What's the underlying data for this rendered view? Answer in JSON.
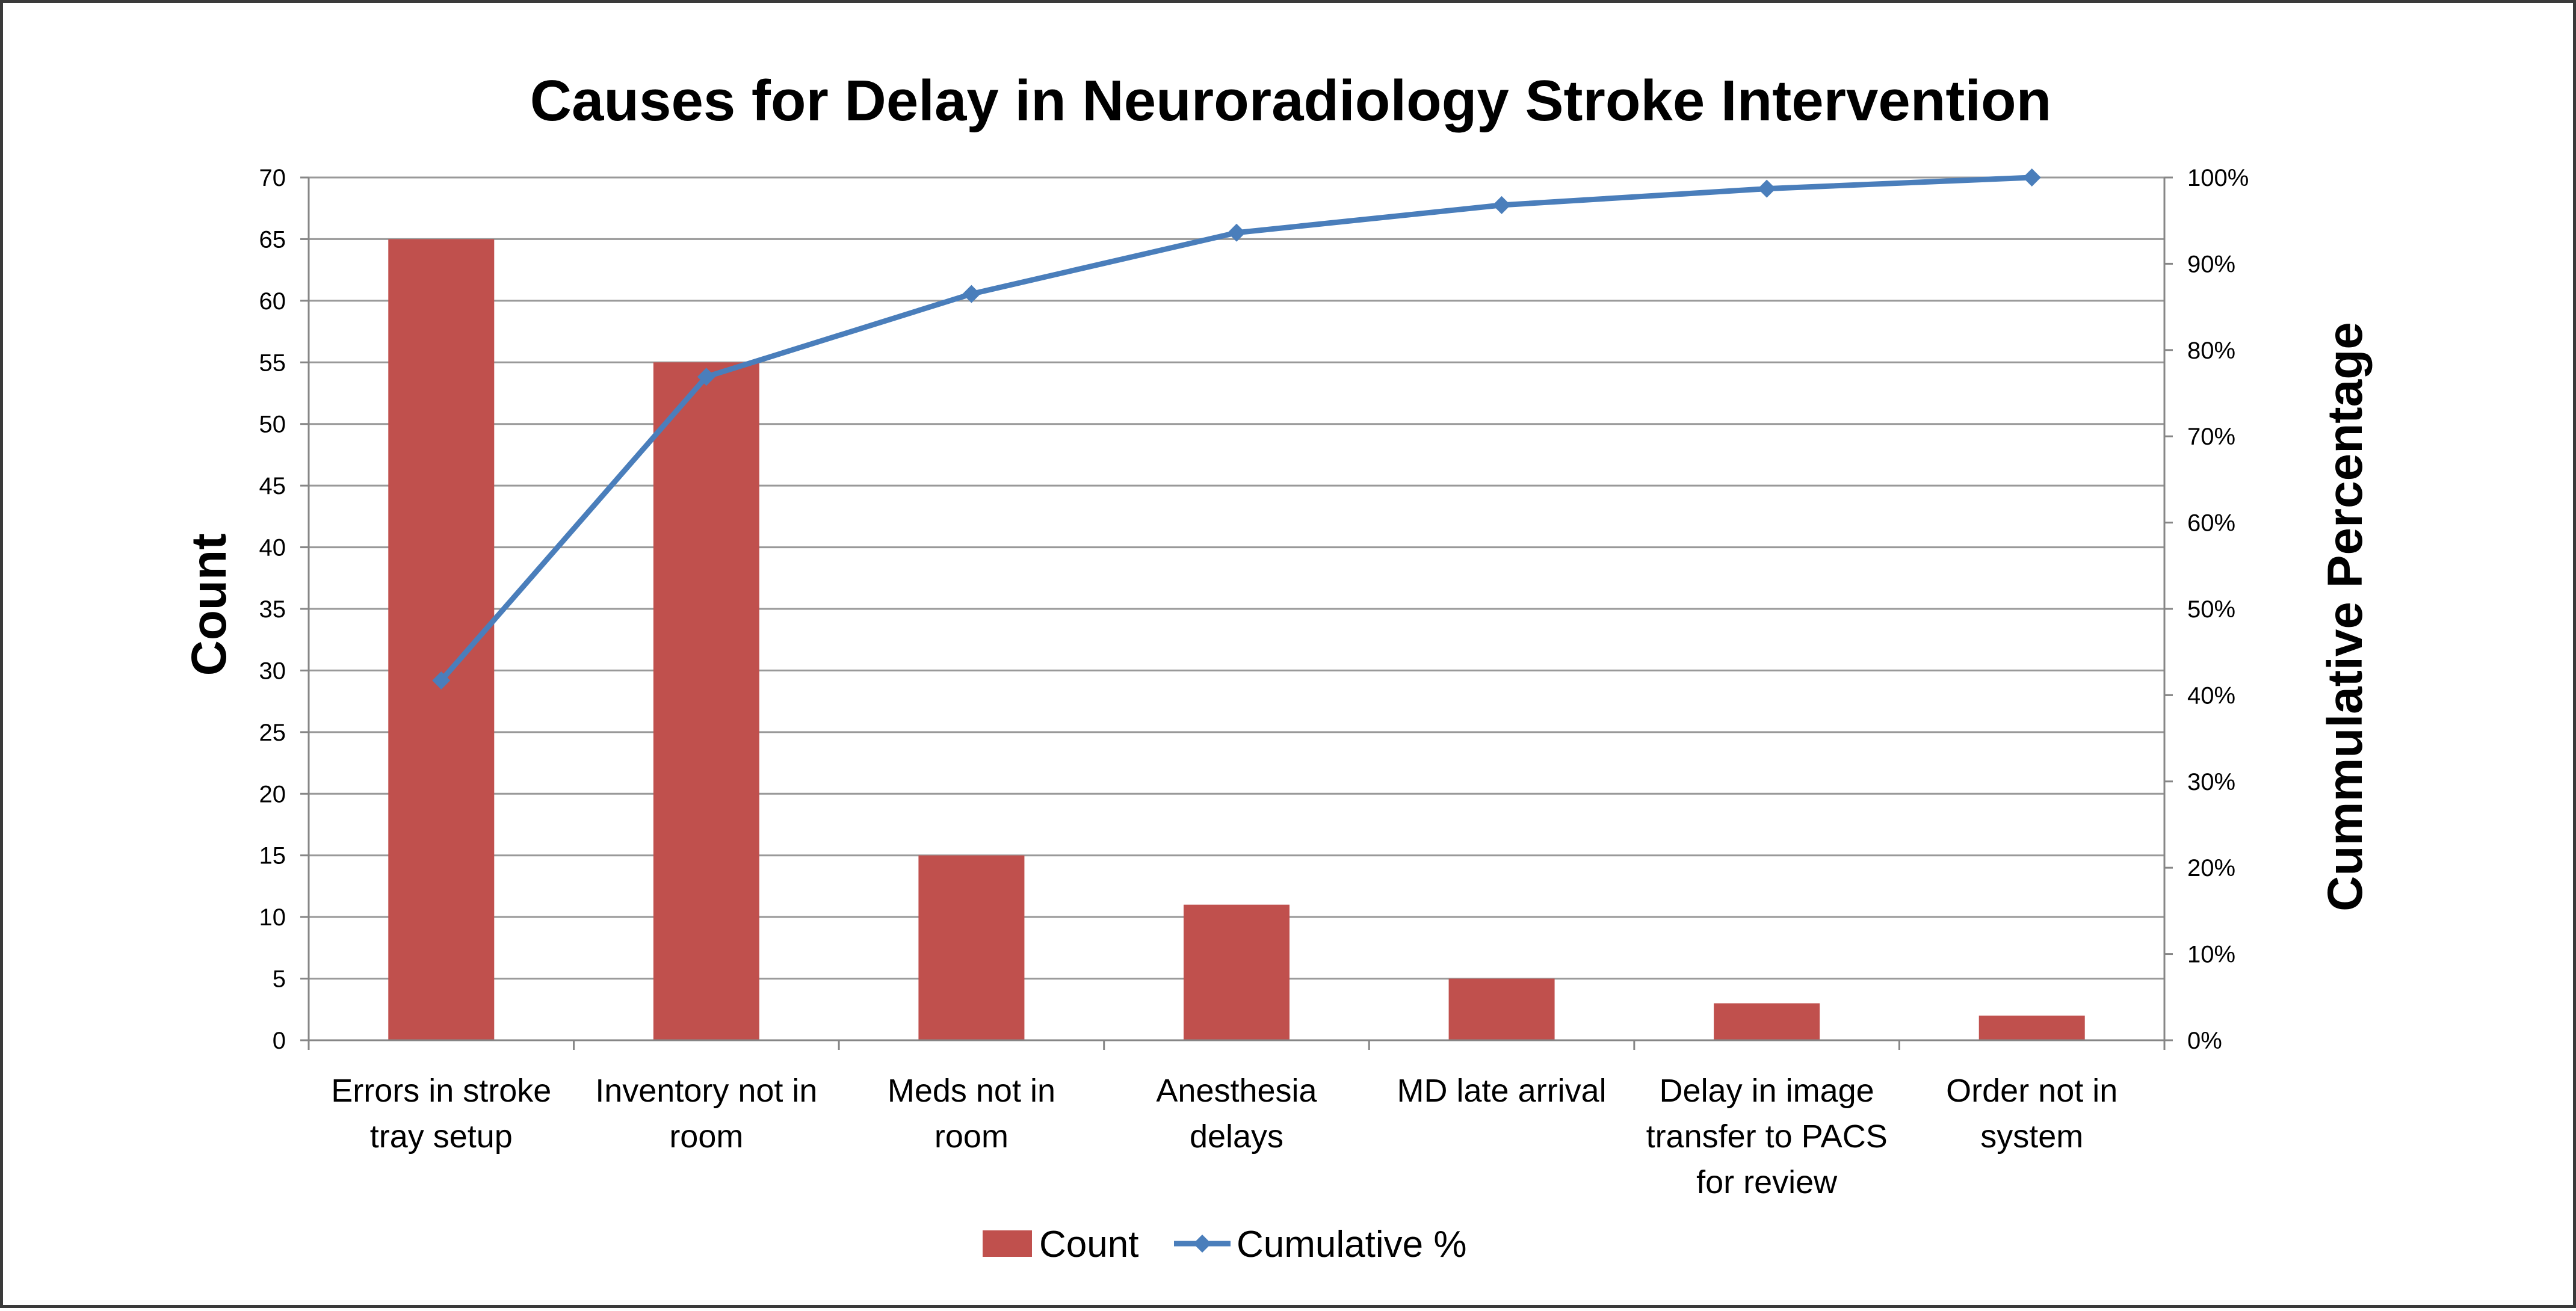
{
  "chart_data": {
    "type": "bar",
    "title": "Causes for Delay in Neuroradiology Stroke Intervention",
    "ylabel": "Count",
    "y2label": "Cummulative Percentage",
    "categories": [
      [
        "Errors in stroke",
        "tray setup"
      ],
      [
        "Inventory not in",
        "room"
      ],
      [
        "Meds not in",
        "room"
      ],
      [
        "Anesthesia",
        "delays"
      ],
      [
        "MD late arrival"
      ],
      [
        "Delay in image",
        "transfer to PACS",
        "for review"
      ],
      [
        "Order not in",
        "system"
      ]
    ],
    "series": [
      {
        "name": "Count",
        "type": "bar",
        "axis": "left",
        "color": "#c0504d",
        "values": [
          65,
          55,
          15,
          11,
          5,
          3,
          2
        ]
      },
      {
        "name": "Cumulative %",
        "type": "line",
        "axis": "right",
        "color": "#4a7ebb",
        "values": [
          41.7,
          76.9,
          86.5,
          93.6,
          96.8,
          98.7,
          100
        ]
      }
    ],
    "ylim": [
      0,
      70
    ],
    "yticks": [
      "0",
      "5",
      "10",
      "15",
      "20",
      "25",
      "30",
      "35",
      "40",
      "45",
      "50",
      "55",
      "60",
      "65",
      "70"
    ],
    "y2lim": [
      0,
      100
    ],
    "y2ticks": [
      "0%",
      "10%",
      "20%",
      "30%",
      "40%",
      "50%",
      "60%",
      "70%",
      "80%",
      "90%",
      "100%"
    ],
    "grid": true,
    "legend": "bottom"
  }
}
